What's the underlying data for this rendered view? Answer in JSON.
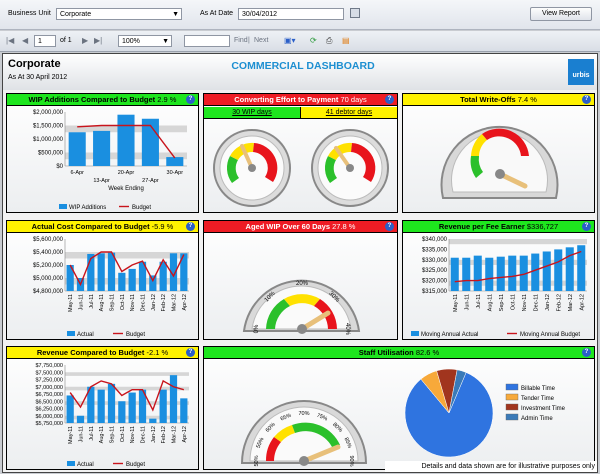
{
  "params": {
    "business_unit_label": "Business Unit",
    "business_unit_value": "Corporate",
    "as_at_label": "As At Date",
    "as_at_value": "30/04/2012",
    "view_report": "View Report"
  },
  "toolbar": {
    "page_value": "1",
    "of_pages": "of 1",
    "zoom": "100%",
    "find": "Find",
    "next": "Next"
  },
  "header": {
    "title": "Corporate",
    "subtitle": "As At 30 April 2012",
    "dashboard_title": "COMMERCIAL DASHBOARD",
    "logo": "urbis"
  },
  "panels": {
    "wip": {
      "title": "WIP Additions Compared to Budget",
      "value": "2.9 %",
      "color": "#1ee61e"
    },
    "effort": {
      "title": "Converting Effort to Payment",
      "value": "70 days",
      "color": "#ee1c24",
      "sub1": "30 WIP days",
      "sub2": "41 debtor days"
    },
    "writeoffs": {
      "title": "Total Write-Offs",
      "value": "7.4 %",
      "color": "#fff200"
    },
    "actualcost": {
      "title": "Actual Cost Compared to Budget",
      "value": "-5.9 %",
      "color": "#fff200"
    },
    "agedwip": {
      "title": "Aged WIP Over 60 Days",
      "value": "27.8 %",
      "color": "#ee1c24"
    },
    "revfee": {
      "title": "Revenue per Fee Earner",
      "value": "$336,727",
      "color": "#1ee61e"
    },
    "revbudget": {
      "title": "Revenue Compared to Budget",
      "value": "-2.1 %",
      "color": "#fff200"
    },
    "staff": {
      "title": "Staff Utilisation",
      "value": "82.6 %",
      "color": "#1ee61e"
    }
  },
  "gauge_labels": {
    "aged": [
      "0%",
      "10%",
      "20%",
      "30%",
      "40%"
    ],
    "staff": [
      "50%",
      "55%",
      "60%",
      "65%",
      "70%",
      "75%",
      "80%",
      "85%",
      "90%"
    ]
  },
  "chart_data": [
    {
      "type": "bar",
      "id": "wip",
      "categories": [
        "6-Apr",
        "13-Apr",
        "20-Apr",
        "27-Apr",
        "30-Apr"
      ],
      "series": [
        {
          "name": "WIP Additions",
          "values": [
            1250000,
            1300000,
            1900000,
            1750000,
            330000
          ]
        },
        {
          "name": "Budget",
          "values": [
            1450000,
            1500000,
            1500000,
            1500000,
            300000
          ]
        }
      ],
      "ylim": [
        0,
        2000000
      ],
      "yticks": [
        "$0",
        "$500,000",
        "$1,000,000",
        "$1,500,000",
        "$2,000,000"
      ],
      "xticks": [
        "6-Apr",
        "13-Apr",
        "20-Apr",
        "27-Apr",
        "30-Apr"
      ],
      "xlabel": "Week Ending"
    },
    {
      "type": "bar",
      "id": "actualcost",
      "categories": [
        "May-11",
        "Jun-11",
        "Jul-11",
        "Aug-11",
        "Sep-11",
        "Oct-11",
        "Nov-11",
        "Dec-11",
        "Jan-12",
        "Feb-12",
        "Mar-12",
        "Apr-12"
      ],
      "series": [
        {
          "name": "Actual",
          "values": [
            5200000,
            5000000,
            5370000,
            5380000,
            5390000,
            5080000,
            5140000,
            5250000,
            5040000,
            5250000,
            5380000,
            5380000
          ]
        },
        {
          "name": "Budget",
          "values": [
            5200000,
            4900000,
            5300000,
            5400000,
            5400000,
            5100000,
            5200000,
            5260000,
            4960000,
            5280000,
            5030000,
            5360000
          ]
        }
      ],
      "ylim": [
        4800000,
        5600000
      ],
      "yticks": [
        "$4,800,000",
        "$5,000,000",
        "$5,200,000",
        "$5,400,000",
        "$5,600,000"
      ],
      "legend": [
        "Actual",
        "Budget"
      ]
    },
    {
      "type": "bar",
      "id": "revfee",
      "categories": [
        "May-11",
        "Jun-11",
        "Jul-11",
        "Aug-11",
        "Sep-11",
        "Oct-11",
        "Nov-11",
        "Dec-11",
        "Jan-12",
        "Feb-12",
        "Mar-12",
        "Apr-12"
      ],
      "series": [
        {
          "name": "Moving Annual Actual",
          "values": [
            331000,
            331000,
            332000,
            331000,
            331500,
            332000,
            332000,
            333000,
            334000,
            335000,
            336000,
            337000
          ]
        },
        {
          "name": "Moving Annual Budget",
          "values": [
            319500,
            320000,
            320000,
            321000,
            321500,
            322000,
            323000,
            325000,
            327000,
            329000,
            332000,
            334000
          ]
        }
      ],
      "ylim": [
        315000,
        340000
      ],
      "yticks": [
        "$315,000",
        "$320,000",
        "$325,000",
        "$330,000",
        "$335,000",
        "$340,000"
      ],
      "legend": [
        "Moving Annual Actual",
        "Moving Annual Budget"
      ]
    },
    {
      "type": "bar",
      "id": "revbudget",
      "categories": [
        "May-11",
        "Jun-11",
        "Jul-11",
        "Aug-11",
        "Sep-11",
        "Oct-11",
        "Nov-11",
        "Dec-11",
        "Jan-12",
        "Feb-12",
        "Mar-12",
        "Apr-12"
      ],
      "series": [
        {
          "name": "Actual",
          "values": [
            6700000,
            6000000,
            7000000,
            6900000,
            7100000,
            6500000,
            6800000,
            6900000,
            5900000,
            6900000,
            7400000,
            6600000
          ]
        },
        {
          "name": "Budget",
          "values": [
            6800000,
            6300000,
            7000000,
            7200000,
            7100000,
            6700000,
            6900000,
            6900000,
            6200000,
            7200000,
            7000000,
            6900000
          ]
        }
      ],
      "ylim": [
        5750000,
        7750000
      ],
      "yticks": [
        "$5,750,000",
        "$6,000,000",
        "$6,250,000",
        "$6,500,000",
        "$6,750,000",
        "$7,000,000",
        "$7,250,000",
        "$7,500,000",
        "$7,750,000"
      ],
      "legend": [
        "Actual",
        "Budget"
      ]
    },
    {
      "type": "pie",
      "id": "staffpie",
      "labels": [
        "Billable Time",
        "Tender Time",
        "Investment Time",
        "Admin Time"
      ],
      "values": [
        82.6,
        6.5,
        7.5,
        3.4
      ],
      "colors": [
        "#2f74e0",
        "#f7a93a",
        "#a1351e",
        "#3a7ab8"
      ]
    }
  ],
  "footer": "Details and data shown are for illustrative purposes only"
}
